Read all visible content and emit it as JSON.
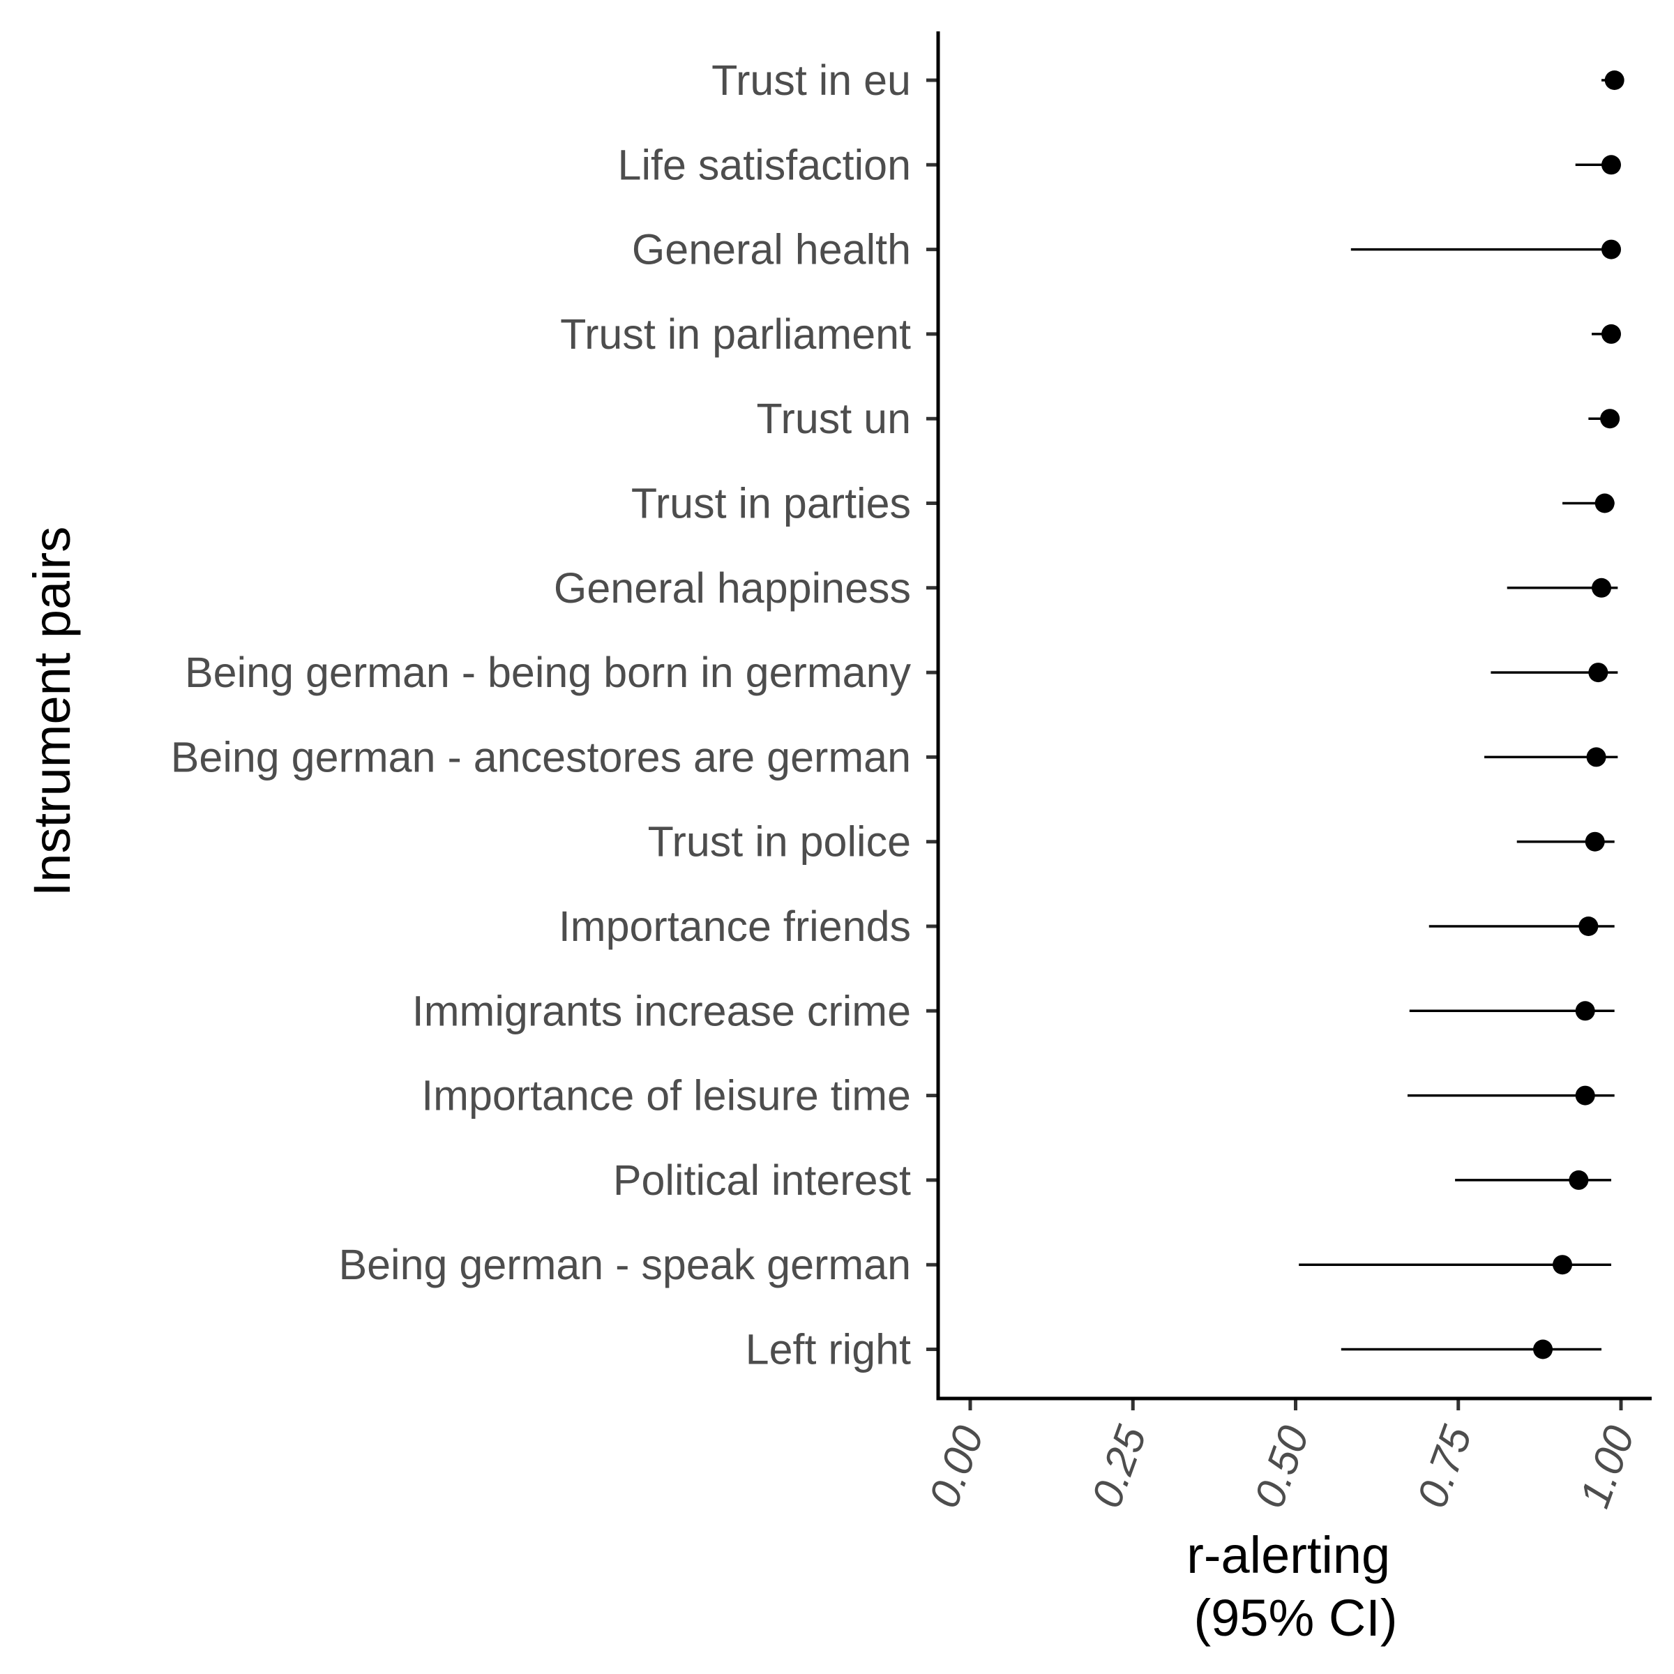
{
  "chart_data": {
    "type": "forest",
    "ylabel": "Instrument pairs",
    "xlabel_lines": [
      "r-alerting",
      "(95% CI)"
    ],
    "xlim": [
      -0.05,
      1.05
    ],
    "x_ticks": [
      0.0,
      0.25,
      0.5,
      0.75,
      1.0
    ],
    "x_tick_labels": [
      "0.00",
      "0.25",
      "0.50",
      "0.75",
      "1.00"
    ],
    "grid": false,
    "points": [
      {
        "label": "Trust in eu",
        "estimate": 0.99,
        "lower": 0.97,
        "upper": 0.995
      },
      {
        "label": "Life satisfaction",
        "estimate": 0.985,
        "lower": 0.93,
        "upper": 0.995
      },
      {
        "label": "General health",
        "estimate": 0.985,
        "lower": 0.585,
        "upper": 0.995
      },
      {
        "label": "Trust in parliament",
        "estimate": 0.985,
        "lower": 0.955,
        "upper": 0.995
      },
      {
        "label": "Trust un",
        "estimate": 0.983,
        "lower": 0.95,
        "upper": 0.993
      },
      {
        "label": "Trust in parties",
        "estimate": 0.975,
        "lower": 0.91,
        "upper": 0.99
      },
      {
        "label": "General happiness",
        "estimate": 0.97,
        "lower": 0.825,
        "upper": 0.995
      },
      {
        "label": "Being german - being born in germany",
        "estimate": 0.965,
        "lower": 0.8,
        "upper": 0.995
      },
      {
        "label": "Being german - ancestores are german",
        "estimate": 0.962,
        "lower": 0.79,
        "upper": 0.995
      },
      {
        "label": "Trust in police",
        "estimate": 0.96,
        "lower": 0.84,
        "upper": 0.99
      },
      {
        "label": "Importance friends",
        "estimate": 0.95,
        "lower": 0.705,
        "upper": 0.99
      },
      {
        "label": "Immigrants increase crime",
        "estimate": 0.945,
        "lower": 0.675,
        "upper": 0.99
      },
      {
        "label": "Importance of leisure time",
        "estimate": 0.945,
        "lower": 0.672,
        "upper": 0.99
      },
      {
        "label": "Political interest",
        "estimate": 0.935,
        "lower": 0.745,
        "upper": 0.985
      },
      {
        "label": "Being german - speak german",
        "estimate": 0.91,
        "lower": 0.505,
        "upper": 0.985
      },
      {
        "label": "Left right",
        "estimate": 0.88,
        "lower": 0.57,
        "upper": 0.97
      }
    ]
  }
}
